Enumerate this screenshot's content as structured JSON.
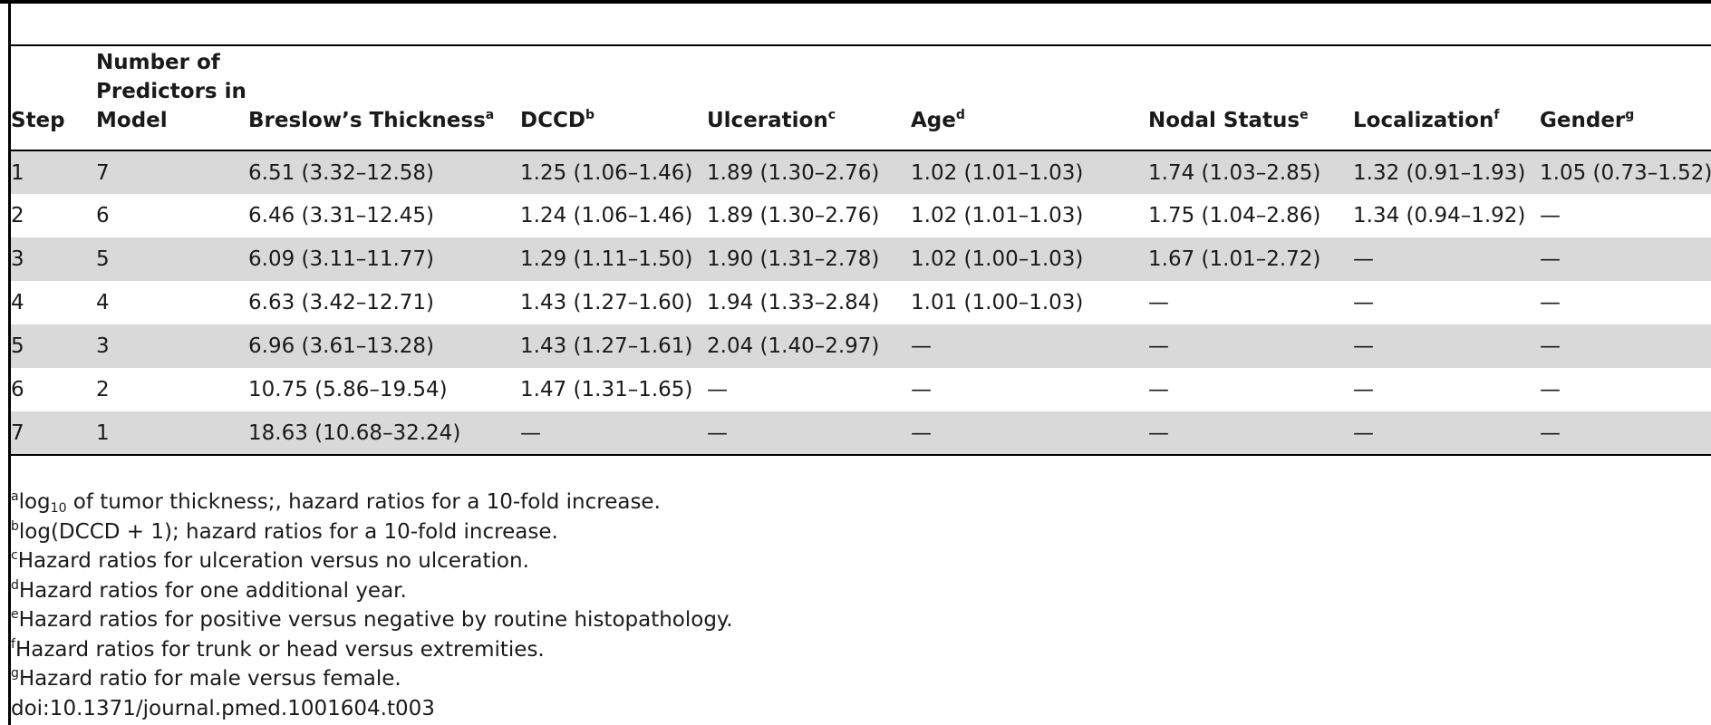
{
  "table": {
    "headers": [
      {
        "label": "Step",
        "sup": ""
      },
      {
        "label": "Number of Predictors in Model",
        "sup": ""
      },
      {
        "label": "Breslow’s Thickness",
        "sup": "a"
      },
      {
        "label": "DCCD",
        "sup": "b"
      },
      {
        "label": "Ulceration",
        "sup": "c"
      },
      {
        "label": "Age",
        "sup": "d"
      },
      {
        "label": "Nodal Status",
        "sup": "e"
      },
      {
        "label": "Localization",
        "sup": "f"
      },
      {
        "label": "Gender",
        "sup": "g"
      }
    ],
    "rows": [
      [
        "1",
        "7",
        "6.51 (3.32–12.58)",
        "1.25 (1.06–1.46)",
        "1.89 (1.30–2.76)",
        "1.02 (1.01–1.03)",
        "1.74 (1.03–2.85)",
        "1.32 (0.91–1.93)",
        "1.05 (0.73–1.52)"
      ],
      [
        "2",
        "6",
        "6.46 (3.31–12.45)",
        "1.24 (1.06–1.46)",
        "1.89 (1.30–2.76)",
        "1.02 (1.01–1.03)",
        "1.75 (1.04–2.86)",
        "1.34 (0.94–1.92)",
        "—"
      ],
      [
        "3",
        "5",
        "6.09 (3.11–11.77)",
        "1.29 (1.11–1.50)",
        "1.90 (1.31–2.78)",
        "1.02 (1.00–1.03)",
        "1.67 (1.01–2.72)",
        "—",
        "—"
      ],
      [
        "4",
        "4",
        "6.63 (3.42–12.71)",
        "1.43 (1.27–1.60)",
        "1.94 (1.33–2.84)",
        "1.01 (1.00–1.03)",
        "—",
        "—",
        "—"
      ],
      [
        "5",
        "3",
        "6.96 (3.61–13.28)",
        "1.43 (1.27–1.61)",
        "2.04 (1.40–2.97)",
        "—",
        "—",
        "—",
        "—"
      ],
      [
        "6",
        "2",
        "10.75 (5.86–19.54)",
        "1.47 (1.31–1.65)",
        "—",
        "—",
        "—",
        "—",
        "—"
      ],
      [
        "7",
        "1",
        "18.63 (10.68–32.24)",
        "—",
        "—",
        "—",
        "—",
        "—",
        "—"
      ]
    ]
  },
  "footnotes": [
    {
      "sup": "a",
      "pre": "log",
      "sub": "10",
      "post": " of tumor thickness;, hazard ratios for a 10-fold increase."
    },
    {
      "sup": "b",
      "pre": "log(DCCD + 1); hazard ratios for a 10-fold increase.",
      "sub": "",
      "post": ""
    },
    {
      "sup": "c",
      "pre": "Hazard ratios for ulceration versus no ulceration.",
      "sub": "",
      "post": ""
    },
    {
      "sup": "d",
      "pre": "Hazard ratios for one additional year.",
      "sub": "",
      "post": ""
    },
    {
      "sup": "e",
      "pre": "Hazard ratios for positive versus negative by routine histopathology.",
      "sub": "",
      "post": ""
    },
    {
      "sup": "f",
      "pre": "Hazard ratios for trunk or head versus extremities.",
      "sub": "",
      "post": ""
    },
    {
      "sup": "g",
      "pre": "Hazard ratio for male versus female.",
      "sub": "",
      "post": ""
    }
  ],
  "doi": "doi:10.1371/journal.pmed.1001604.t003"
}
